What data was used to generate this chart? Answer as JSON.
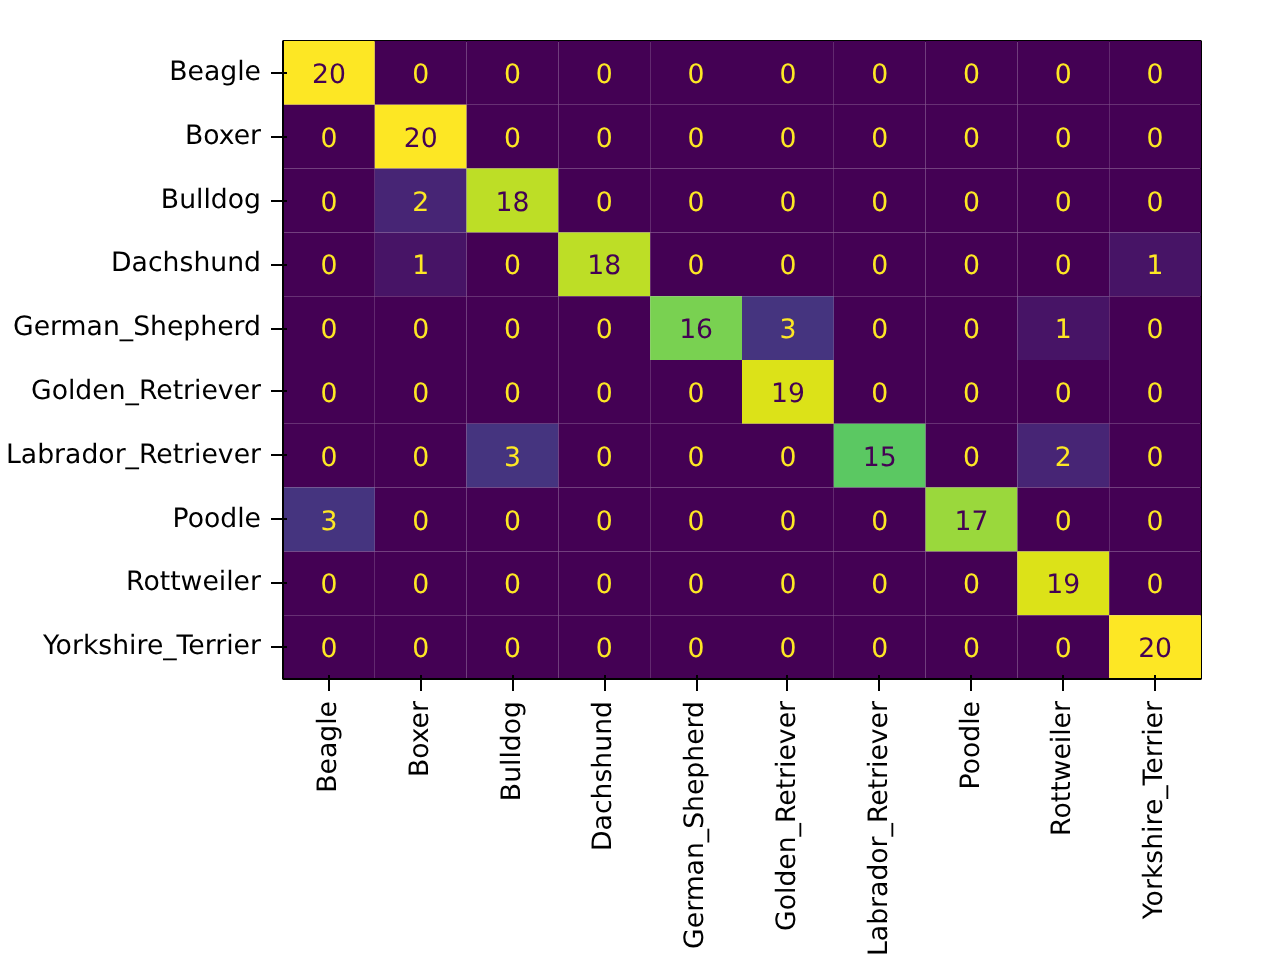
{
  "chart_data": {
    "type": "heatmap",
    "categories": [
      "Beagle",
      "Boxer",
      "Bulldog",
      "Dachshund",
      "German_Shepherd",
      "Golden_Retriever",
      "Labrador_Retriever",
      "Poodle",
      "Rottweiler",
      "Yorkshire_Terrier"
    ],
    "y_categories": [
      "Beagle",
      "Boxer",
      "Bulldog",
      "Dachshund",
      "German_Shepherd",
      "Golden_Retriever",
      "Labrador_Retriever",
      "Poodle",
      "Rottweiler",
      "Yorkshire_Terrier"
    ],
    "cells": [
      [
        20,
        0,
        0,
        0,
        0,
        0,
        0,
        0,
        0,
        0
      ],
      [
        0,
        20,
        0,
        0,
        0,
        0,
        0,
        0,
        0,
        0
      ],
      [
        0,
        2,
        18,
        0,
        0,
        0,
        0,
        0,
        0,
        0
      ],
      [
        0,
        1,
        0,
        18,
        0,
        0,
        0,
        0,
        0,
        1
      ],
      [
        0,
        0,
        0,
        0,
        16,
        3,
        0,
        0,
        1,
        0
      ],
      [
        0,
        0,
        0,
        0,
        0,
        19,
        0,
        0,
        0,
        0
      ],
      [
        0,
        0,
        3,
        0,
        0,
        0,
        15,
        0,
        2,
        0
      ],
      [
        3,
        0,
        0,
        0,
        0,
        0,
        0,
        17,
        0,
        0
      ],
      [
        0,
        0,
        0,
        0,
        0,
        0,
        0,
        0,
        19,
        0
      ],
      [
        0,
        0,
        0,
        0,
        0,
        0,
        0,
        0,
        0,
        20
      ]
    ],
    "data_labels": true
  }
}
